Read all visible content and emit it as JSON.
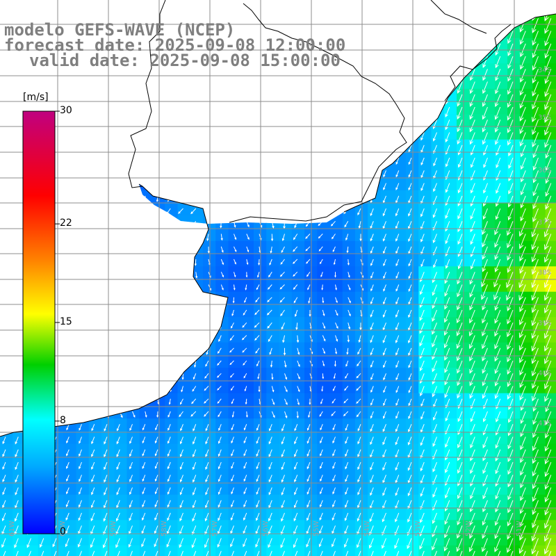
{
  "title": {
    "line1": "modelo GEFS-WAVE (NCEP)",
    "line2": "forecast date: 2025-09-08 12:00:00",
    "line3": "valid date: 2025-09-08 15:00:00"
  },
  "colorbar": {
    "unit": "[m/s]",
    "ticks": [
      {
        "label": "30",
        "value": 30
      },
      {
        "label": "22",
        "value": 22
      },
      {
        "label": "15",
        "value": 15
      },
      {
        "label": "8",
        "value": 8
      },
      {
        "label": "0",
        "value": 0
      }
    ],
    "min": 0,
    "max": 30,
    "stops": [
      "#0000ff",
      "#00aaff",
      "#00ffff",
      "#00d000",
      "#ffff00",
      "#ff8000",
      "#ff0000",
      "#c00080"
    ]
  },
  "grid": {
    "lon_labels": [
      "61W",
      "60W",
      "59W",
      "58W",
      "57W",
      "56W",
      "55W",
      "54W",
      "53W",
      "52W",
      "51W",
      "50W",
      "49W"
    ],
    "lat_labels": [
      "34S",
      "35S",
      "36S",
      "37S",
      "38S",
      "39S",
      "40S",
      "41S"
    ]
  },
  "colors": {
    "land": "#ffffff",
    "coast": "#000000",
    "grid_line": "#8c8c8c",
    "arrow": "#ffffff"
  }
}
